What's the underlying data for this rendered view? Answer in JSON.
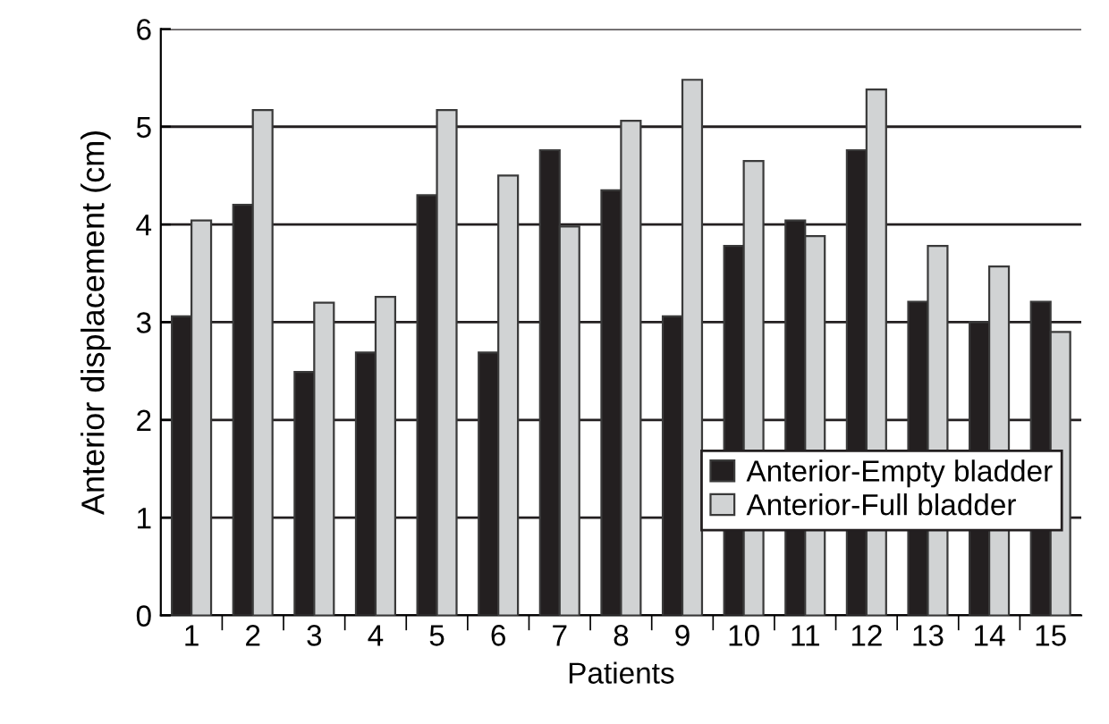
{
  "chart_data": {
    "type": "bar",
    "xlabel": "Patients",
    "ylabel": "Anterior displacement (cm)",
    "categories": [
      "1",
      "2",
      "3",
      "4",
      "5",
      "6",
      "7",
      "8",
      "9",
      "10",
      "11",
      "12",
      "13",
      "14",
      "15"
    ],
    "series": [
      {
        "name": "Anterior-Empty bladder",
        "color": "#231f20",
        "values": [
          3.06,
          4.2,
          2.49,
          2.69,
          4.3,
          2.69,
          4.76,
          4.35,
          3.06,
          3.78,
          4.04,
          4.76,
          3.21,
          3.0,
          3.21
        ]
      },
      {
        "name": "Anterior-Full bladder",
        "color": "#d1d3d4",
        "values": [
          4.04,
          5.17,
          3.2,
          3.26,
          5.17,
          4.5,
          3.98,
          5.06,
          5.48,
          4.65,
          3.88,
          5.38,
          3.78,
          3.57,
          2.9
        ]
      }
    ],
    "ylim": [
      0,
      6
    ],
    "yticks": [
      0,
      1,
      2,
      3,
      4,
      5,
      6
    ],
    "grid": "y",
    "legend": "bottom right"
  }
}
